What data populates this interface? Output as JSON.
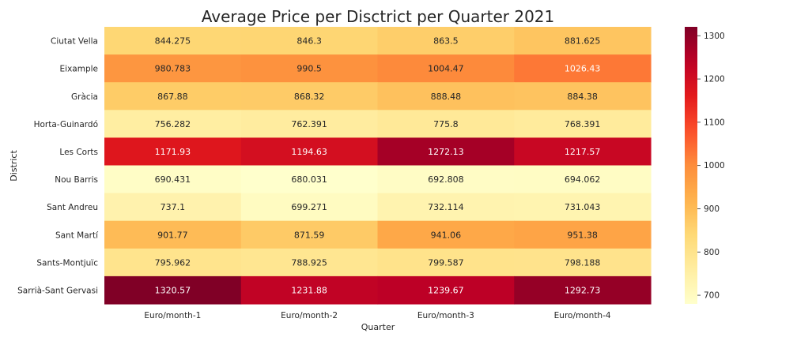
{
  "chart_data": {
    "type": "heatmap",
    "title": "Average Price per Disctrict per Quarter 2021",
    "xlabel": "Quarter",
    "ylabel": "District",
    "columns": [
      "Euro/month-1",
      "Euro/month-2",
      "Euro/month-3",
      "Euro/month-4"
    ],
    "rows": [
      "Ciutat Vella",
      "Eixample",
      "Gràcia",
      "Horta-Guinardó",
      "Les Corts",
      "Nou Barris",
      "Sant Andreu",
      "Sant Martí",
      "Sants-Montjuïc",
      "Sarrià-Sant Gervasi"
    ],
    "values": [
      [
        844.275,
        846.3,
        863.5,
        881.625
      ],
      [
        980.783,
        990.5,
        1004.47,
        1026.43
      ],
      [
        867.88,
        868.32,
        888.48,
        884.38
      ],
      [
        756.282,
        762.391,
        775.8,
        768.391
      ],
      [
        1171.93,
        1194.63,
        1272.13,
        1217.57
      ],
      [
        690.431,
        680.031,
        692.808,
        694.062
      ],
      [
        737.1,
        699.271,
        732.114,
        731.043
      ],
      [
        901.77,
        871.59,
        941.06,
        951.38
      ],
      [
        795.962,
        788.925,
        799.587,
        798.188
      ],
      [
        1320.57,
        1231.88,
        1239.67,
        1292.73
      ]
    ],
    "value_labels": [
      [
        "844.275",
        "846.3",
        "863.5",
        "881.625"
      ],
      [
        "980.783",
        "990.5",
        "1004.47",
        "1026.43"
      ],
      [
        "867.88",
        "868.32",
        "888.48",
        "884.38"
      ],
      [
        "756.282",
        "762.391",
        "775.8",
        "768.391"
      ],
      [
        "1171.93",
        "1194.63",
        "1272.13",
        "1217.57"
      ],
      [
        "690.431",
        "680.031",
        "692.808",
        "694.062"
      ],
      [
        "737.1",
        "699.271",
        "732.114",
        "731.043"
      ],
      [
        "901.77",
        "871.59",
        "941.06",
        "951.38"
      ],
      [
        "795.962",
        "788.925",
        "799.587",
        "798.188"
      ],
      [
        "1320.57",
        "1231.88",
        "1239.67",
        "1292.73"
      ]
    ],
    "colormap": "YlOrRd",
    "color_range": [
      680.031,
      1320.57
    ],
    "colorbar_ticks": [
      700,
      800,
      900,
      1000,
      1100,
      1200,
      1300
    ],
    "colorbar_tick_labels": [
      "700",
      "800",
      "900",
      "1000",
      "1100",
      "1200",
      "1300"
    ]
  }
}
